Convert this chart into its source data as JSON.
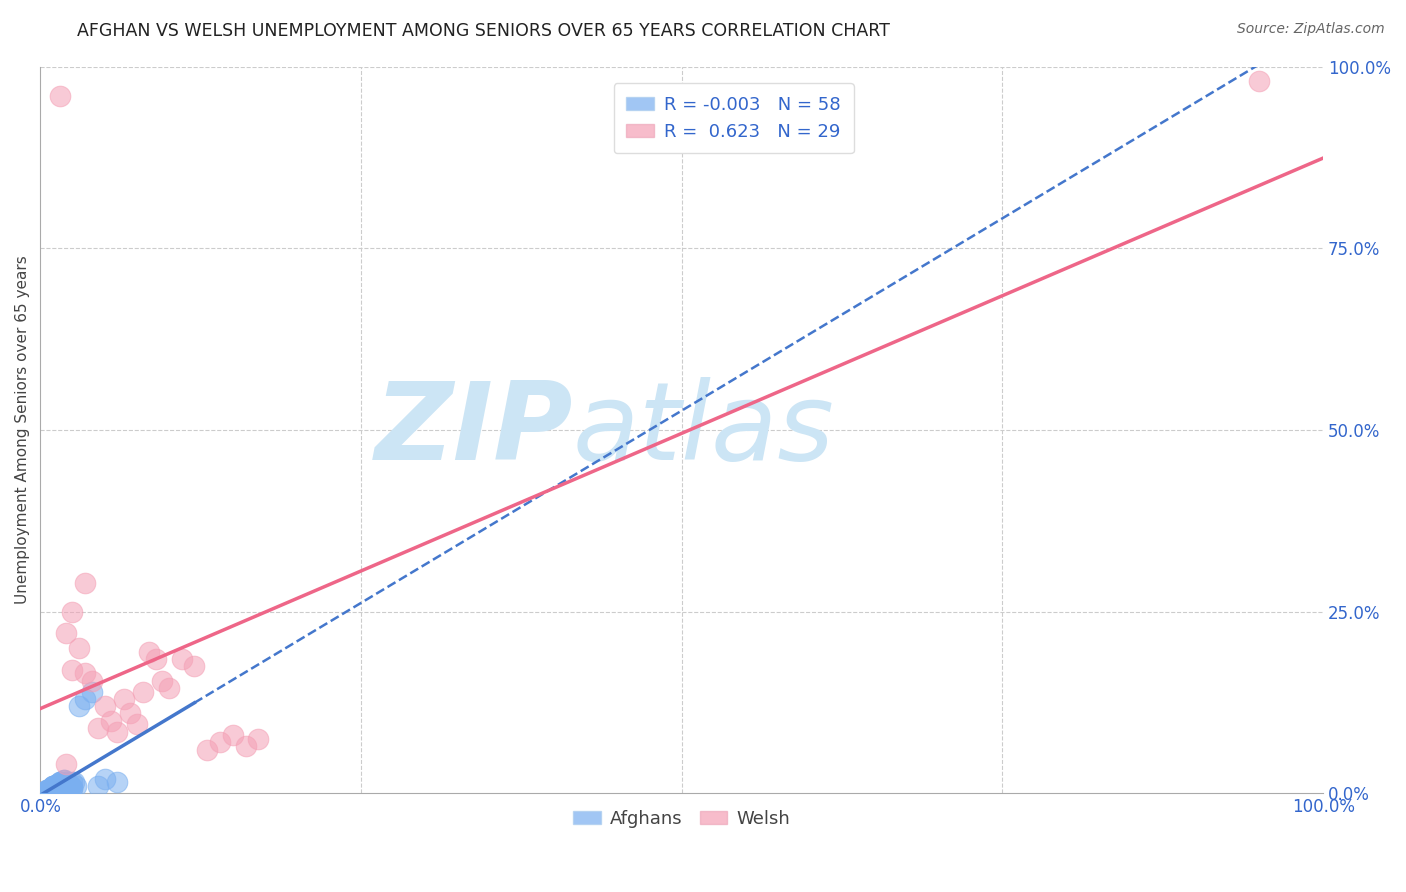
{
  "title": "AFGHAN VS WELSH UNEMPLOYMENT AMONG SENIORS OVER 65 YEARS CORRELATION CHART",
  "source_text": "Source: ZipAtlas.com",
  "ylabel": "Unemployment Among Seniors over 65 years",
  "xlim": [
    0.0,
    1.0
  ],
  "ylim": [
    0.0,
    1.0
  ],
  "xticks": [
    0.0,
    0.25,
    0.5,
    0.75,
    1.0
  ],
  "yticks": [
    0.0,
    0.25,
    0.5,
    0.75,
    1.0
  ],
  "x_tick_labels_left": [
    "0.0%",
    "",
    "",
    "",
    ""
  ],
  "x_tick_labels_right": [
    "",
    "",
    "",
    "",
    "100.0%"
  ],
  "y_tick_labels": [
    "0.0%",
    "25.0%",
    "50.0%",
    "75.0%",
    "100.0%"
  ],
  "afghan_R": -0.003,
  "afghan_N": 58,
  "welsh_R": 0.623,
  "welsh_N": 29,
  "afghan_color": "#7aaff0",
  "welsh_color": "#f4a0b5",
  "afghan_line_color": "#4477cc",
  "welsh_line_color": "#ee6688",
  "watermark_zip": "ZIP",
  "watermark_atlas": "atlas",
  "watermark_color": "#cce5f5",
  "grid_color": "#cccccc",
  "afghan_scatter_x": [
    0.005,
    0.008,
    0.01,
    0.012,
    0.015,
    0.018,
    0.02,
    0.022,
    0.025,
    0.028,
    0.01,
    0.015,
    0.018,
    0.02,
    0.022,
    0.025,
    0.012,
    0.016,
    0.02,
    0.024,
    0.008,
    0.012,
    0.016,
    0.02,
    0.01,
    0.014,
    0.018,
    0.022,
    0.026,
    0.01,
    0.014,
    0.018,
    0.022,
    0.005,
    0.008,
    0.01,
    0.012,
    0.015,
    0.02,
    0.025,
    0.005,
    0.008,
    0.01,
    0.012,
    0.015,
    0.018,
    0.02,
    0.022,
    0.005,
    0.008,
    0.01,
    0.012,
    0.03,
    0.035,
    0.04,
    0.045,
    0.05,
    0.06
  ],
  "afghan_scatter_y": [
    0.005,
    0.008,
    0.01,
    0.012,
    0.015,
    0.018,
    0.01,
    0.012,
    0.015,
    0.01,
    0.008,
    0.01,
    0.012,
    0.015,
    0.01,
    0.008,
    0.01,
    0.012,
    0.015,
    0.01,
    0.005,
    0.008,
    0.01,
    0.012,
    0.005,
    0.008,
    0.01,
    0.012,
    0.015,
    0.005,
    0.008,
    0.01,
    0.012,
    0.005,
    0.008,
    0.01,
    0.012,
    0.015,
    0.01,
    0.008,
    0.005,
    0.008,
    0.01,
    0.012,
    0.015,
    0.018,
    0.01,
    0.012,
    0.005,
    0.008,
    0.01,
    0.012,
    0.12,
    0.13,
    0.14,
    0.01,
    0.02,
    0.015
  ],
  "welsh_scatter_x": [
    0.015,
    0.02,
    0.025,
    0.03,
    0.035,
    0.04,
    0.045,
    0.05,
    0.055,
    0.06,
    0.065,
    0.07,
    0.075,
    0.08,
    0.085,
    0.09,
    0.095,
    0.1,
    0.11,
    0.12,
    0.13,
    0.14,
    0.15,
    0.16,
    0.17,
    0.025,
    0.035,
    0.95,
    0.02
  ],
  "welsh_scatter_y": [
    0.96,
    0.22,
    0.17,
    0.2,
    0.165,
    0.155,
    0.09,
    0.12,
    0.1,
    0.085,
    0.13,
    0.11,
    0.095,
    0.14,
    0.195,
    0.185,
    0.155,
    0.145,
    0.185,
    0.175,
    0.06,
    0.07,
    0.08,
    0.065,
    0.075,
    0.25,
    0.29,
    0.98,
    0.04
  ]
}
